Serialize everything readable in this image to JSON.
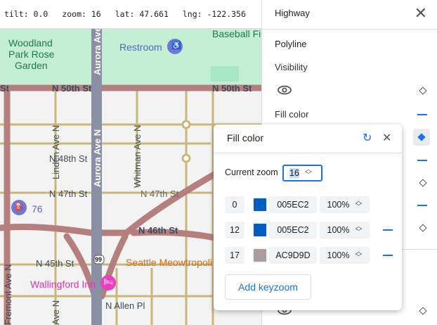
{
  "status_bar": {
    "tilt": "tilt: 0.0",
    "zoom": "zoom: 16",
    "lat": "lat: 47.661",
    "lng": "lng: -122.356"
  },
  "map": {
    "labels": {
      "woodland1": "Woodland",
      "woodland2": "Park Rose",
      "woodland3": "Garden",
      "restroom": "Restroom",
      "baseball": "Baseball Fi",
      "n50_a": "N 50th St",
      "n50_b": "N 50th St",
      "n50_c": "St",
      "aurora_top": "Aurora Ave N",
      "aurora_mid": "Aurora Ave N",
      "linden": "Linden Ave N",
      "whitman": "Whitman Ave N",
      "n48": "N 48th St",
      "n47_a": "N 47th St",
      "n47_b": "N 47th St",
      "gas": "76",
      "n46": "N 46th St",
      "n45": "N 45th St",
      "fremont": "Fremont Ave N",
      "route": "99",
      "meow": "Seattle Meowtropoli",
      "inn": "Wallingford Inn",
      "allen": "N Allen Pl",
      "ave_n": "Ave N"
    },
    "colors": {
      "park": "#c3efd5",
      "highway": "#b47f7d",
      "aurora": "#8a8fa3",
      "arterial": "#c9b77a"
    }
  },
  "panel": {
    "title": "Highway",
    "section": "Polyline",
    "visibility_label": "Visibility",
    "fill_color_label": "Fill color"
  },
  "popup": {
    "title": "Fill color",
    "current_zoom_label": "Current zoom",
    "current_zoom_value": "16",
    "keyzooms": [
      {
        "zoom": "0",
        "color": "#005EC2",
        "hex": "005EC2",
        "opacity": "100%"
      },
      {
        "zoom": "12",
        "color": "#005EC2",
        "hex": "005EC2",
        "opacity": "100%"
      },
      {
        "zoom": "17",
        "color": "#AC9D9D",
        "hex": "AC9D9D",
        "opacity": "100%"
      }
    ],
    "add_label": "Add keyzoom"
  }
}
